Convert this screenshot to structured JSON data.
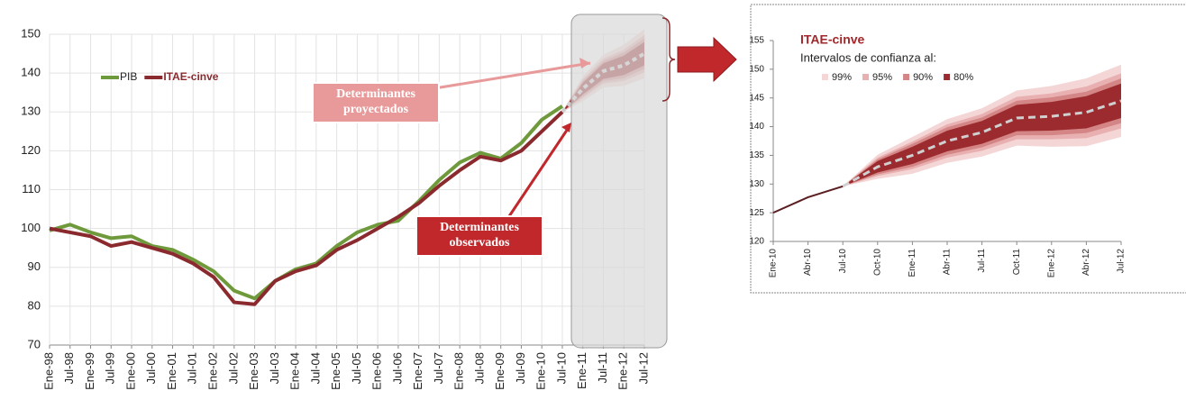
{
  "chart_data": [
    {
      "type": "line",
      "categories": [
        "Ene-98",
        "Jul-98",
        "Ene-99",
        "Jul-99",
        "Ene-00",
        "Jul-00",
        "Ene-01",
        "Jul-01",
        "Ene-02",
        "Jul-02",
        "Ene-03",
        "Jul-03",
        "Ene-04",
        "Jul-04",
        "Ene-05",
        "Jul-05",
        "Ene-06",
        "Jul-06",
        "Ene-07",
        "Jul-07",
        "Ene-08",
        "Jul-08",
        "Ene-09",
        "Jul-09",
        "Ene-10",
        "Jul-10",
        "Ene-11",
        "Jul-11",
        "Ene-12",
        "Jul-12"
      ],
      "ylim": [
        70,
        150
      ],
      "yticks": [
        70,
        80,
        90,
        100,
        110,
        120,
        130,
        140,
        150
      ],
      "grid": true,
      "series": [
        {
          "name": "PIB",
          "color": "#6f9a3c",
          "values": [
            99.5,
            101,
            99,
            97.5,
            98,
            95.5,
            94.5,
            92,
            89,
            84,
            82,
            86.5,
            89.5,
            91,
            95.5,
            99,
            101,
            102,
            107,
            112.5,
            117,
            119.5,
            118,
            122,
            128,
            131.5,
            null,
            null,
            null,
            null
          ]
        },
        {
          "name": "ITAE-cinve",
          "color": "#8b2a2e",
          "values": [
            100,
            99,
            98,
            95.5,
            96.5,
            95,
            93.5,
            91,
            87.5,
            81,
            80.5,
            86.5,
            89,
            90.5,
            94.5,
            97,
            100,
            103,
            106.5,
            111,
            115,
            118.5,
            117.5,
            120,
            125,
            130,
            null,
            null,
            null,
            null
          ]
        }
      ],
      "forecast": {
        "color": "#d0d0d0",
        "values": [
          null,
          null,
          null,
          null,
          null,
          null,
          null,
          null,
          null,
          null,
          null,
          null,
          null,
          null,
          null,
          null,
          null,
          null,
          null,
          null,
          null,
          null,
          null,
          null,
          null,
          130,
          136,
          140.5,
          142,
          145
        ]
      },
      "bands": [
        {
          "color": "#f4d6d6",
          "low": [
            null,
            null,
            null,
            null,
            null,
            null,
            null,
            null,
            null,
            null,
            null,
            null,
            null,
            null,
            null,
            null,
            null,
            null,
            null,
            null,
            null,
            null,
            null,
            null,
            null,
            130,
            132.8,
            136.3,
            136.7,
            138.7
          ],
          "high": [
            null,
            null,
            null,
            null,
            null,
            null,
            null,
            null,
            null,
            null,
            null,
            null,
            null,
            null,
            null,
            null,
            null,
            null,
            null,
            null,
            null,
            null,
            null,
            null,
            null,
            130,
            139.2,
            144.7,
            147.3,
            151.3
          ]
        },
        {
          "color": "#e8b0b0",
          "low": [
            null,
            null,
            null,
            null,
            null,
            null,
            null,
            null,
            null,
            null,
            null,
            null,
            null,
            null,
            null,
            null,
            null,
            null,
            null,
            null,
            null,
            null,
            null,
            null,
            null,
            130,
            133.6,
            137.3,
            138,
            140.2
          ],
          "high": [
            null,
            null,
            null,
            null,
            null,
            null,
            null,
            null,
            null,
            null,
            null,
            null,
            null,
            null,
            null,
            null,
            null,
            null,
            null,
            null,
            null,
            null,
            null,
            null,
            null,
            130,
            138.4,
            143.7,
            146,
            149.8
          ]
        },
        {
          "color": "#d48585",
          "low": [
            null,
            null,
            null,
            null,
            null,
            null,
            null,
            null,
            null,
            null,
            null,
            null,
            null,
            null,
            null,
            null,
            null,
            null,
            null,
            null,
            null,
            null,
            null,
            null,
            null,
            130,
            134,
            137.9,
            138.7,
            141.1
          ],
          "high": [
            null,
            null,
            null,
            null,
            null,
            null,
            null,
            null,
            null,
            null,
            null,
            null,
            null,
            null,
            null,
            null,
            null,
            null,
            null,
            null,
            null,
            null,
            null,
            null,
            null,
            130,
            138,
            143.1,
            145.3,
            148.9
          ]
        },
        {
          "color": "#9c2b2f",
          "low": [
            null,
            null,
            null,
            null,
            null,
            null,
            null,
            null,
            null,
            null,
            null,
            null,
            null,
            null,
            null,
            null,
            null,
            null,
            null,
            null,
            null,
            null,
            null,
            null,
            null,
            130,
            134.5,
            138.5,
            139.5,
            142
          ],
          "high": [
            null,
            null,
            null,
            null,
            null,
            null,
            null,
            null,
            null,
            null,
            null,
            null,
            null,
            null,
            null,
            null,
            null,
            null,
            null,
            null,
            null,
            null,
            null,
            null,
            null,
            130,
            137.5,
            142.5,
            144.5,
            148
          ]
        }
      ],
      "annotations": [
        {
          "lines": [
            "Determinantes",
            "proyectados"
          ],
          "color": "#e89a9a"
        },
        {
          "lines": [
            "Determinantes",
            "observados"
          ],
          "color": "#c0282c"
        }
      ]
    },
    {
      "type": "line",
      "title": "ITAE-cinve",
      "subtitle": "Intervalos de confianza al:",
      "categories": [
        "Ene-10",
        "Abr-10",
        "Jul-10",
        "Oct-10",
        "Ene-11",
        "Abr-11",
        "Jul-11",
        "Oct-11",
        "Ene-12",
        "Abr-12",
        "Jul-12"
      ],
      "ylim": [
        120,
        155
      ],
      "yticks": [
        120,
        125,
        130,
        135,
        140,
        145,
        150,
        155
      ],
      "grid": false,
      "series": [
        {
          "color": "#5a1e22",
          "values": [
            125,
            127.7,
            129.6,
            null,
            null,
            null,
            null,
            null,
            null,
            null,
            null
          ]
        }
      ],
      "forecast": {
        "color": "#d0d0d0",
        "values": [
          null,
          null,
          129.6,
          133,
          135,
          137.5,
          139,
          141.5,
          141.8,
          142.5,
          144.5
        ]
      },
      "bands": [
        {
          "name": "99%",
          "color": "#f4d6d6",
          "low": [
            null,
            null,
            129.6,
            130.9,
            131.8,
            133.7,
            134.8,
            136.7,
            136.5,
            136.6,
            138.2
          ],
          "high": [
            null,
            null,
            129.6,
            135.1,
            138.2,
            141.3,
            143.2,
            146.3,
            147.1,
            148.4,
            150.8
          ]
        },
        {
          "name": "95%",
          "color": "#e8b0b0",
          "low": [
            null,
            null,
            129.6,
            131.4,
            132.6,
            134.6,
            135.8,
            137.8,
            137.8,
            138,
            139.7
          ],
          "high": [
            null,
            null,
            129.6,
            134.6,
            137.4,
            140.4,
            142.2,
            145.2,
            145.8,
            147,
            149.3
          ]
        },
        {
          "name": "90%",
          "color": "#d48585",
          "low": [
            null,
            null,
            129.6,
            131.7,
            133,
            135.1,
            136.4,
            138.5,
            138.5,
            138.9,
            140.6
          ],
          "high": [
            null,
            null,
            129.6,
            134.3,
            137,
            139.9,
            141.6,
            144.5,
            145.1,
            146.1,
            148.4
          ]
        },
        {
          "name": "80%",
          "color": "#9c2b2f",
          "low": [
            null,
            null,
            129.6,
            132,
            133.5,
            135.7,
            137,
            139.2,
            139.3,
            139.7,
            141.5
          ],
          "high": [
            null,
            null,
            129.6,
            134,
            136.5,
            139.3,
            141,
            143.8,
            144.3,
            145.3,
            147.5
          ]
        }
      ]
    }
  ]
}
